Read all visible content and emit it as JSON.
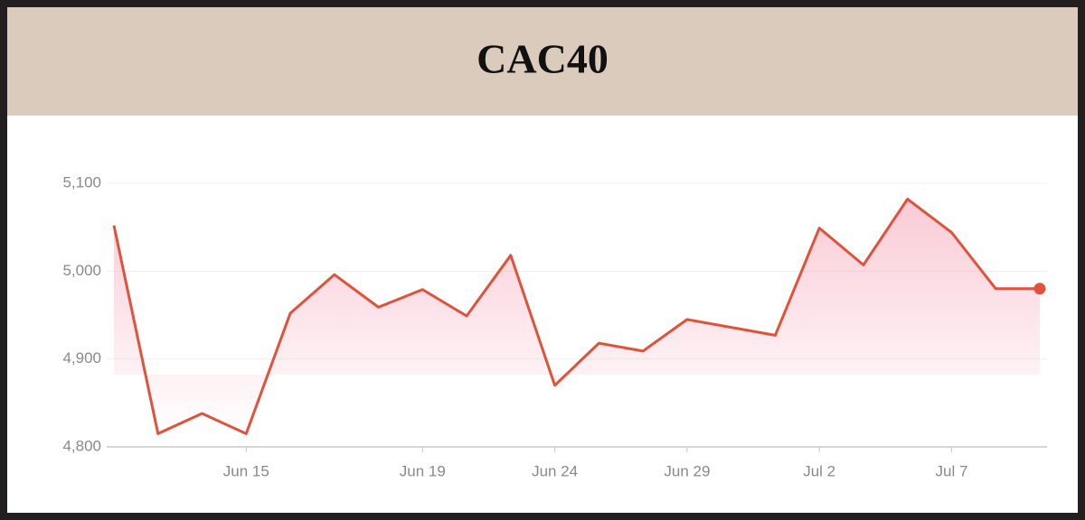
{
  "chart_data": {
    "type": "line",
    "title": "CAC40",
    "categories": [
      null,
      null,
      null,
      "Jun 15",
      null,
      null,
      null,
      "Jun 19",
      null,
      null,
      "Jun 24",
      null,
      null,
      "Jun 29",
      null,
      null,
      "Jul 2",
      null,
      null,
      "Jul 7",
      null,
      null
    ],
    "values": [
      5052,
      4815,
      4838,
      4815,
      4952,
      4996,
      4959,
      4979,
      4949,
      5018,
      4870,
      4918,
      4909,
      4945,
      4936,
      4927,
      5049,
      5007,
      5082,
      5044,
      4980,
      4980
    ],
    "color": "#e0533a",
    "ylim": [
      4800,
      5100
    ],
    "yticks": [
      {
        "value": 4800,
        "label": "4,800"
      },
      {
        "value": 4900,
        "label": "4,900"
      },
      {
        "value": 5000,
        "label": "5,000"
      },
      {
        "value": 5100,
        "label": "5,100"
      }
    ],
    "grid": true
  }
}
